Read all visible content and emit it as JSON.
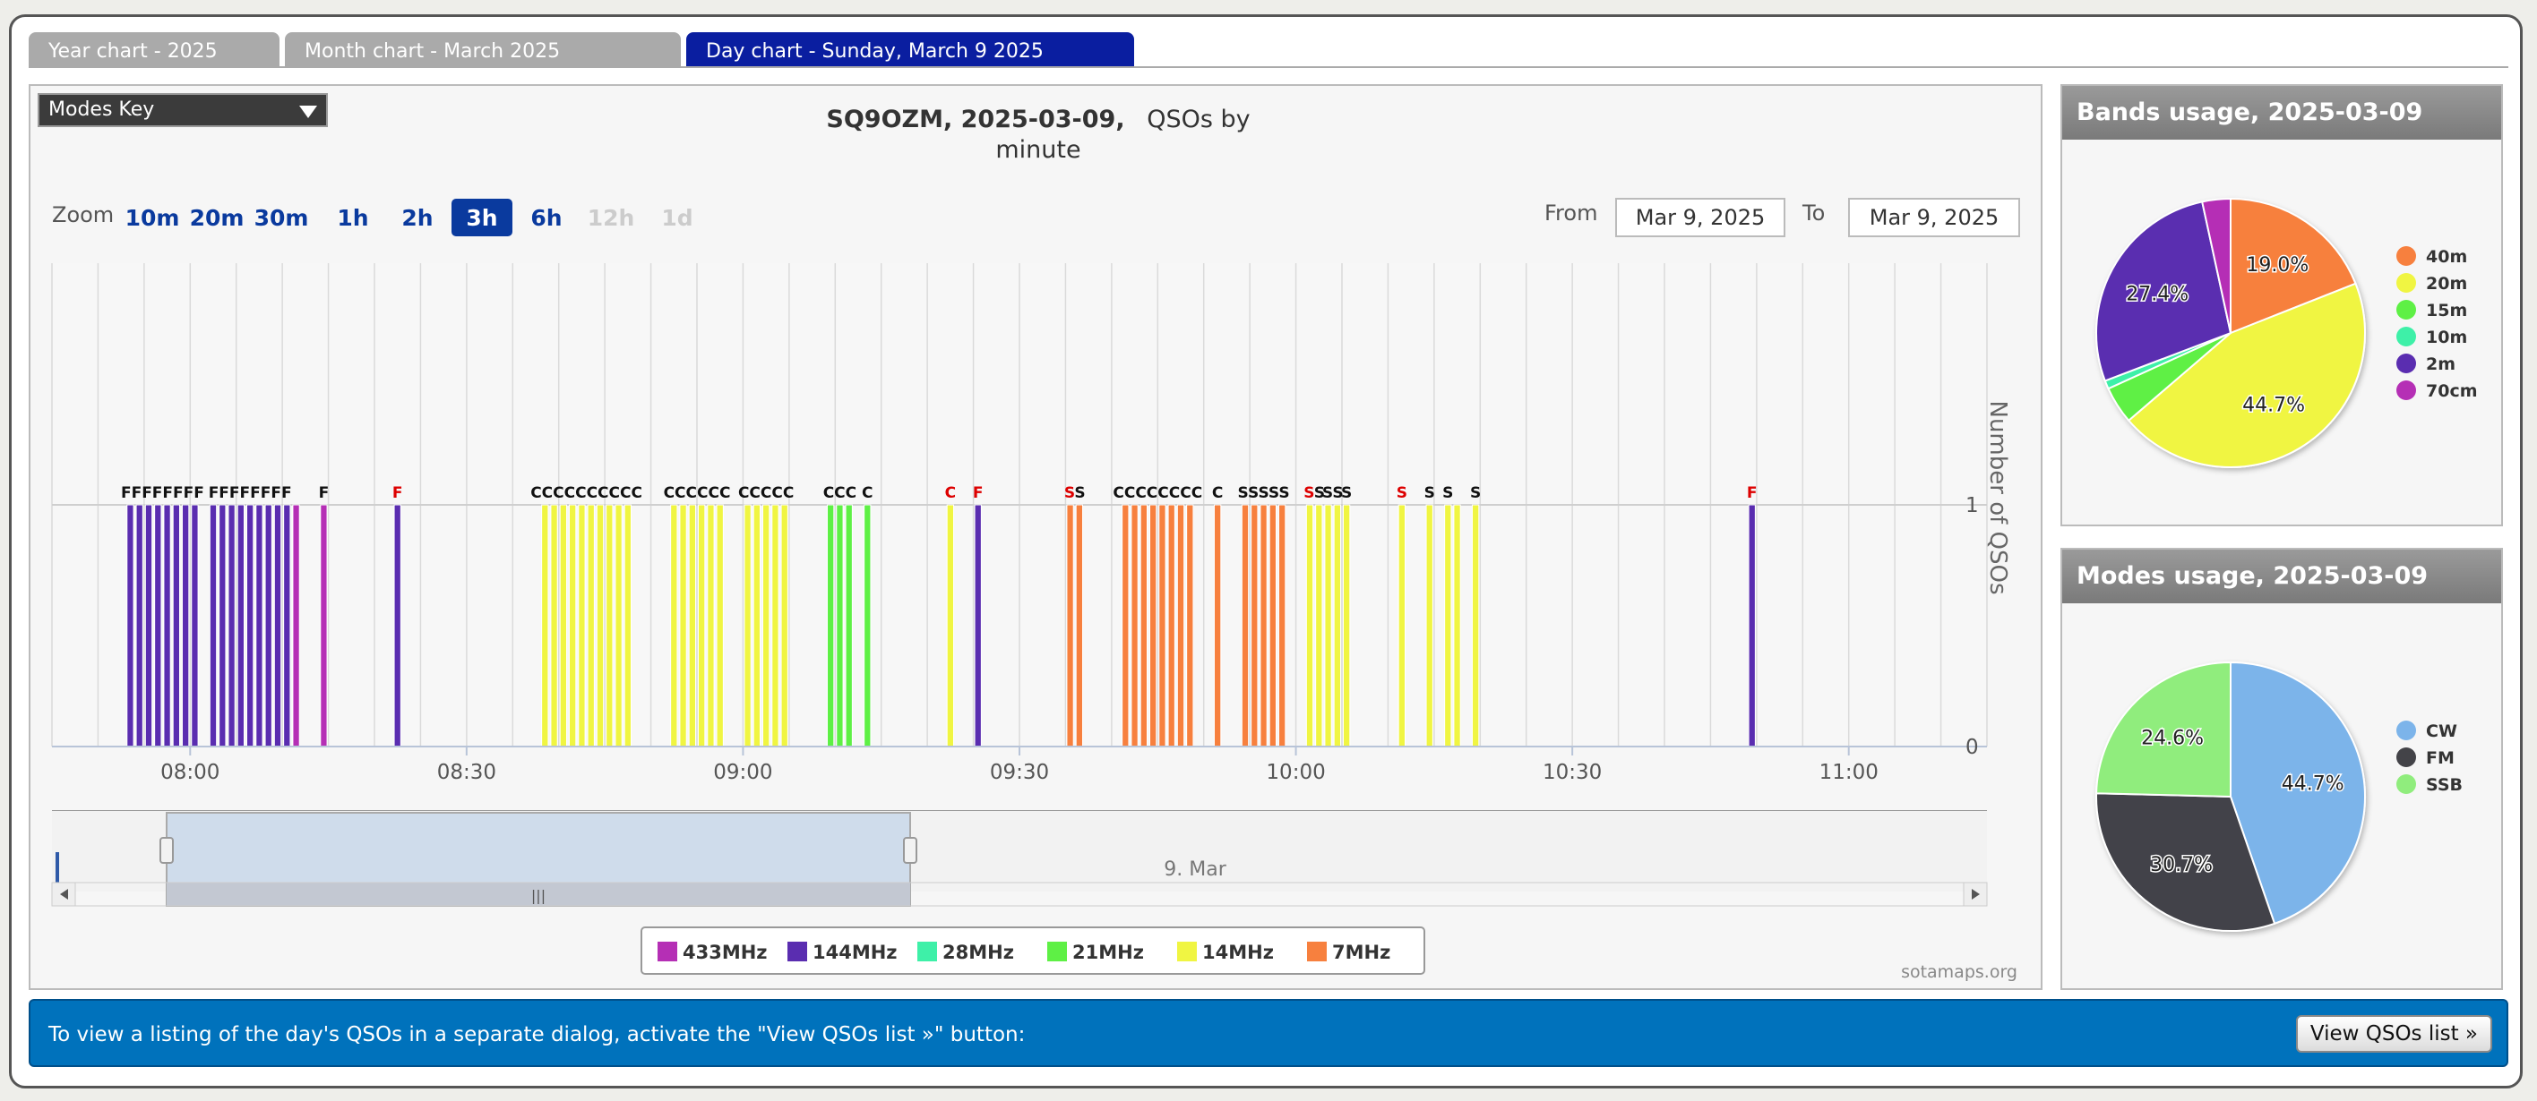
{
  "tabs": [
    {
      "label": "Year chart - 2025",
      "active": false
    },
    {
      "label": "Month chart - March 2025",
      "active": false
    },
    {
      "label": "Day chart - Sunday, March 9 2025",
      "active": true
    }
  ],
  "modes_key": {
    "label": "Modes Key"
  },
  "zoom": {
    "label": "Zoom",
    "buttons": [
      {
        "label": "10m",
        "state": "enabled"
      },
      {
        "label": "20m",
        "state": "enabled"
      },
      {
        "label": "30m",
        "state": "enabled"
      },
      {
        "label": "1h",
        "state": "enabled"
      },
      {
        "label": "2h",
        "state": "enabled"
      },
      {
        "label": "3h",
        "state": "selected"
      },
      {
        "label": "6h",
        "state": "enabled"
      },
      {
        "label": "12h",
        "state": "disabled"
      },
      {
        "label": "1d",
        "state": "disabled"
      }
    ]
  },
  "range": {
    "from_label": "From",
    "from_value": "Mar 9, 2025",
    "to_label": "To",
    "to_value": "Mar 9, 2025"
  },
  "credit": "sotamaps.org",
  "navigator_label": "9. Mar",
  "chart_data": {
    "type": "bar",
    "title_bold": "SQ9OZM, 2025-03-09,",
    "title_rest": "QSOs by",
    "title_line2": "minute",
    "ylabel": "Number of QSOs",
    "ylim": [
      0,
      1
    ],
    "y_ticks": [
      0,
      1
    ],
    "x_range_minutes": [
      465,
      675
    ],
    "x_ticks": [
      {
        "label": "08:00",
        "minute": 480
      },
      {
        "label": "08:30",
        "minute": 510
      },
      {
        "label": "09:00",
        "minute": 540
      },
      {
        "label": "09:30",
        "minute": 570
      },
      {
        "label": "10:00",
        "minute": 600
      },
      {
        "label": "10:30",
        "minute": 630
      },
      {
        "label": "11:00",
        "minute": 660
      }
    ],
    "legend": [
      {
        "name": "433MHz",
        "color": "#b52fb5"
      },
      {
        "name": "144MHz",
        "color": "#5a2db0"
      },
      {
        "name": "28MHz",
        "color": "#3ef0a8"
      },
      {
        "name": "21MHz",
        "color": "#5ef045"
      },
      {
        "name": "14MHz",
        "color": "#f0f542"
      },
      {
        "name": "7MHz",
        "color": "#f7803e"
      }
    ],
    "band_colors": {
      "433": "#b52fb5",
      "144": "#5a2db0",
      "28": "#3ef0a8",
      "21": "#5ef045",
      "14": "#f0f542",
      "7": "#f7803e"
    },
    "mode_colors": {
      "F": "#dd0000",
      "C": "#111111",
      "S": "#111111"
    },
    "groups": [
      {
        "band": "144",
        "mode": "F",
        "start": 473,
        "count": 8,
        "label": "FFFFFFFF"
      },
      {
        "band": "144",
        "mode": "F",
        "start": 482,
        "count": 9,
        "label": "FFFFFFFF"
      },
      {
        "band": "433",
        "mode": "F",
        "start": 491,
        "count": 1,
        "label": ""
      },
      {
        "band": "433",
        "mode": "F",
        "start": 494,
        "count": 1,
        "label": "F"
      },
      {
        "band": "144",
        "mode": "F",
        "start": 502,
        "count": 1,
        "label": "F",
        "label_red": true
      },
      {
        "band": "14",
        "mode": "C",
        "start": 518,
        "count": 10,
        "label": "CCCCCCCCCC"
      },
      {
        "band": "14",
        "mode": "C",
        "start": 532,
        "count": 6,
        "label": "CCCCCC"
      },
      {
        "band": "14",
        "mode": "C",
        "start": 540,
        "count": 5,
        "label": "CCCCC"
      },
      {
        "band": "21",
        "mode": "C",
        "start": 549,
        "count": 3,
        "label": "CCC"
      },
      {
        "band": "21",
        "mode": "C",
        "start": 553,
        "count": 1,
        "label": "C"
      },
      {
        "band": "14",
        "mode": "C",
        "start": 562,
        "count": 1,
        "label": "C",
        "label_red": true
      },
      {
        "band": "144",
        "mode": "F",
        "start": 565,
        "count": 1,
        "label": "F",
        "label_red": true
      },
      {
        "band": "7",
        "mode": "S",
        "start": 575,
        "count": 2,
        "label": "SS",
        "label_red_first": true
      },
      {
        "band": "7",
        "mode": "C",
        "start": 581,
        "count": 8,
        "label": "CCCCCCCC"
      },
      {
        "band": "7",
        "mode": "C",
        "start": 591,
        "count": 1,
        "label": "C"
      },
      {
        "band": "7",
        "mode": "S",
        "start": 594,
        "count": 5,
        "label": "SSSSS"
      },
      {
        "band": "14",
        "mode": "S",
        "start": 601,
        "count": 2,
        "label": "SS",
        "label_red_first": true
      },
      {
        "band": "14",
        "mode": "S",
        "start": 603,
        "count": 2,
        "label": "SS"
      },
      {
        "band": "14",
        "mode": "S",
        "start": 605,
        "count": 1,
        "label": "S"
      },
      {
        "band": "14",
        "mode": "S",
        "start": 611,
        "count": 1,
        "label": "S",
        "label_red": true
      },
      {
        "band": "14",
        "mode": "S",
        "start": 614,
        "count": 1,
        "label": "S"
      },
      {
        "band": "14",
        "mode": "S",
        "start": 616,
        "count": 1,
        "label": "S"
      },
      {
        "band": "14",
        "mode": "S",
        "start": 617,
        "count": 1,
        "label": ""
      },
      {
        "band": "14",
        "mode": "S",
        "start": 619,
        "count": 1,
        "label": "S"
      },
      {
        "band": "144",
        "mode": "F",
        "start": 649,
        "count": 1,
        "label": "F",
        "label_red": true
      }
    ]
  },
  "bands_usage": {
    "title": "Bands usage, 2025-03-09",
    "slices": [
      {
        "name": "40m",
        "value": 19.0,
        "label": "19.0%",
        "color": "#f7803e"
      },
      {
        "name": "20m",
        "value": 44.7,
        "label": "44.7%",
        "color": "#f0f542"
      },
      {
        "name": "15m",
        "value": 4.5,
        "label": "",
        "color": "#5ef045"
      },
      {
        "name": "10m",
        "value": 1.0,
        "label": "",
        "color": "#3ef0a8"
      },
      {
        "name": "2m",
        "value": 27.4,
        "label": "27.4%",
        "color": "#5a2db0"
      },
      {
        "name": "70cm",
        "value": 3.4,
        "label": "",
        "color": "#b52fb5"
      }
    ]
  },
  "modes_usage": {
    "title": "Modes usage, 2025-03-09",
    "slices": [
      {
        "name": "CW",
        "value": 44.7,
        "label": "44.7%",
        "color": "#7cb4ea"
      },
      {
        "name": "FM",
        "value": 30.7,
        "label": "30.7%",
        "color": "#434348"
      },
      {
        "name": "SSB",
        "value": 24.6,
        "label": "24.6%",
        "color": "#90ed7d"
      }
    ]
  },
  "bottom": {
    "text": "To view a listing of the day's QSOs in a separate dialog, activate the \"View QSOs list »\" button:",
    "button": "View QSOs list »"
  }
}
